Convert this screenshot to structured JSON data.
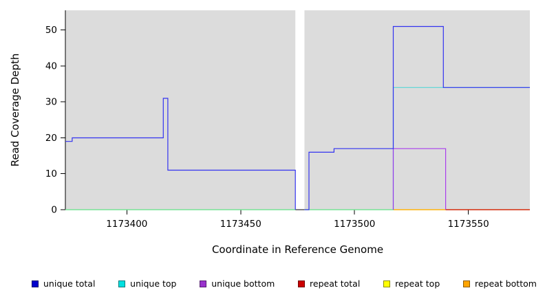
{
  "chart_data": {
    "type": "line",
    "step_style": true,
    "title": "",
    "xlabel": "Coordinate in Reference Genome",
    "ylabel": "Read Coverage Depth",
    "xlim": [
      1173373,
      1173577
    ],
    "ylim": [
      0,
      55.5
    ],
    "xticks": [
      1173400,
      1173450,
      1173500,
      1173550
    ],
    "yticks": [
      0,
      10,
      20,
      30,
      40,
      50
    ],
    "plot_background": "#dcdcdc",
    "axis_color": "#000000",
    "gap_region": {
      "from": 1173474,
      "to": 1173478
    },
    "series": [
      {
        "name": "repeat top",
        "color": "#ffff00",
        "opacity": 1,
        "segments": [
          [
            [
              1173373,
              0
            ],
            [
              1173474,
              0
            ]
          ],
          [
            [
              1173478,
              0
            ],
            [
              1173577,
              0
            ]
          ]
        ]
      },
      {
        "name": "repeat bottom",
        "color": "#ffa500",
        "opacity": 1,
        "segments": [
          [
            [
              1173517,
              0
            ],
            [
              1173540,
              0
            ]
          ]
        ]
      },
      {
        "name": "repeat total",
        "color": "#cc0000",
        "opacity": 1,
        "segments": [
          [
            [
              1173540,
              0
            ],
            [
              1173577,
              0
            ]
          ]
        ]
      },
      {
        "name": "unique top",
        "color": "#2ad4d4",
        "opacity": 0.75,
        "segments": [
          [
            [
              1173373,
              0
            ],
            [
              1173474,
              0
            ]
          ],
          [
            [
              1173478,
              0
            ],
            [
              1173517,
              0
            ],
            [
              1173517,
              34
            ],
            [
              1173577,
              34
            ]
          ]
        ]
      },
      {
        "name": "unique bottom",
        "color": "#a020f0",
        "opacity": 0.85,
        "segments": [
          [
            [
              1173517,
              0
            ],
            [
              1173517,
              17
            ],
            [
              1173540,
              17
            ],
            [
              1173540,
              0
            ]
          ]
        ]
      },
      {
        "name": "unique total",
        "color": "#3232f0",
        "opacity": 1,
        "segments": [
          [
            [
              1173373,
              19
            ],
            [
              1173376,
              19
            ],
            [
              1173376,
              20
            ],
            [
              1173416,
              20
            ],
            [
              1173416,
              31
            ],
            [
              1173418,
              31
            ],
            [
              1173418,
              11
            ],
            [
              1173474,
              11
            ],
            [
              1173474,
              0
            ]
          ],
          [
            [
              1173478,
              0
            ],
            [
              1173480,
              0
            ],
            [
              1173480,
              16
            ],
            [
              1173491,
              16
            ],
            [
              1173491,
              17
            ],
            [
              1173517,
              17
            ],
            [
              1173517,
              51
            ],
            [
              1173539,
              51
            ],
            [
              1173539,
              34
            ],
            [
              1173577,
              34
            ]
          ]
        ]
      }
    ],
    "legend": [
      {
        "label": "unique total",
        "color": "#0000cd"
      },
      {
        "label": "unique top",
        "color": "#00e0e0"
      },
      {
        "label": "unique bottom",
        "color": "#9932cc"
      },
      {
        "label": "repeat total",
        "color": "#cc0000"
      },
      {
        "label": "repeat top",
        "color": "#ffff00"
      },
      {
        "label": "repeat bottom",
        "color": "#ffa500"
      }
    ]
  }
}
